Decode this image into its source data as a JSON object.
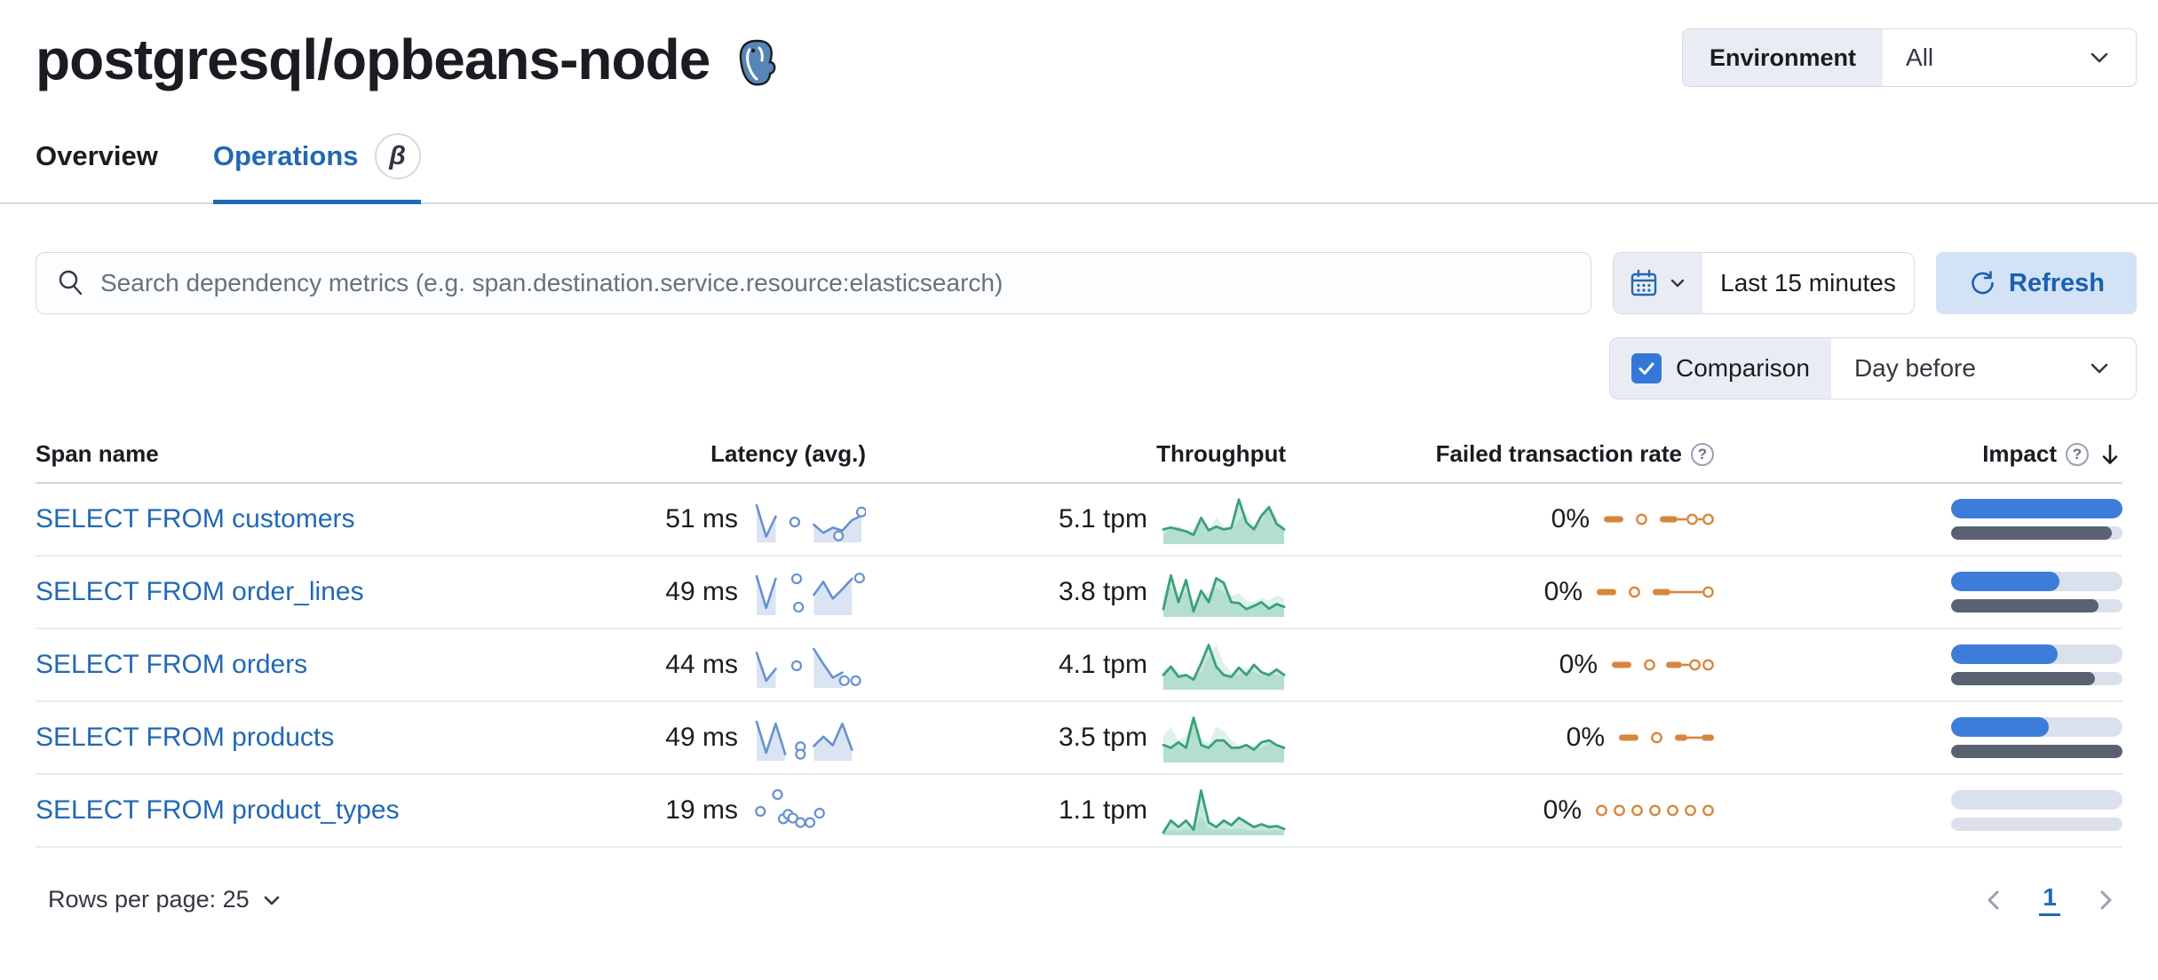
{
  "page": {
    "title": "postgresql/opbeans-node"
  },
  "environment": {
    "label": "Environment",
    "value": "All"
  },
  "tabs": {
    "overview": "Overview",
    "operations": "Operations",
    "beta": "β"
  },
  "toolbar": {
    "search_placeholder": "Search dependency metrics (e.g. span.destination.service.resource:elasticsearch)",
    "time_range": "Last 15 minutes",
    "refresh_label": "Refresh",
    "comparison_label": "Comparison",
    "comparison_checked": true,
    "comparison_value": "Day before"
  },
  "table": {
    "headers": {
      "span": "Span name",
      "latency": "Latency (avg.)",
      "throughput": "Throughput",
      "failed": "Failed transaction rate",
      "impact": "Impact"
    },
    "sort": {
      "column": "Impact",
      "direction": "desc"
    },
    "rows": [
      {
        "span_name": "SELECT FROM customers",
        "latency": "51 ms",
        "throughput": "5.1 tpm",
        "failed_rate": "0%",
        "impact": 1.0,
        "impact_prev": 0.94,
        "latency_spark": {
          "line": [
            0.9,
            0.06,
            0.6,
            null,
            null,
            null,
            0.38,
            0.16,
            0.3,
            0.22,
            0.5,
            0.62
          ],
          "dots": [
            [
              4,
              0.45
            ],
            [
              8.6,
              0.08
            ],
            [
              11,
              0.72
            ]
          ]
        },
        "throughput_spark": {
          "curr": [
            0.3,
            0.34,
            0.3,
            0.26,
            0.18,
            0.55,
            0.28,
            0.36,
            0.3,
            0.33,
            0.95,
            0.45,
            0.3,
            0.6,
            0.78,
            0.42,
            0.3
          ],
          "prev": [
            0.2,
            0.3,
            0.38,
            0.26,
            0.32,
            0.48,
            0.3,
            0.55,
            0.38,
            0.3,
            0.52,
            0.66,
            0.38,
            0.46,
            0.85,
            0.56,
            0.36
          ]
        },
        "failed_spark": [
          [
            "dash",
            22
          ],
          [
            "gap",
            14
          ],
          [
            "dot",
            13
          ],
          [
            "gap",
            14
          ],
          [
            "dash",
            20
          ],
          [
            "line",
            10
          ],
          [
            "dot",
            13
          ],
          [
            "line",
            5
          ],
          [
            "dot",
            13
          ]
        ]
      },
      {
        "span_name": "SELECT FROM order_lines",
        "latency": "49 ms",
        "throughput": "3.8 tpm",
        "failed_rate": "0%",
        "impact": 0.63,
        "impact_prev": 0.86,
        "latency_spark": {
          "line": [
            0.95,
            0.1,
            0.88,
            null,
            null,
            null,
            0.45,
            0.8,
            0.35,
            0.6,
            0.88,
            null
          ],
          "dots": [
            [
              4.2,
              0.88
            ],
            [
              4.4,
              0.12
            ],
            [
              10.8,
              0.9
            ]
          ]
        },
        "throughput_spark": {
          "curr": [
            0.15,
            0.88,
            0.3,
            0.78,
            0.1,
            0.55,
            0.3,
            0.82,
            0.72,
            0.3,
            0.28,
            0.15,
            0.22,
            0.3,
            0.16,
            0.26,
            0.2
          ],
          "prev": [
            0.5,
            0.62,
            0.42,
            0.52,
            0.34,
            0.44,
            0.54,
            0.62,
            0.52,
            0.44,
            0.5,
            0.34,
            0.3,
            0.4,
            0.34,
            0.44,
            0.38
          ]
        },
        "failed_spark": [
          [
            "dash",
            22
          ],
          [
            "gap",
            14
          ],
          [
            "dot",
            13
          ],
          [
            "gap",
            14
          ],
          [
            "dash",
            20
          ],
          [
            "line",
            36
          ],
          [
            "dot",
            13
          ]
        ]
      },
      {
        "span_name": "SELECT FROM orders",
        "latency": "44 ms",
        "throughput": "4.1 tpm",
        "failed_rate": "0%",
        "impact": 0.62,
        "impact_prev": 0.84,
        "latency_spark": {
          "line": [
            0.85,
            0.1,
            0.42,
            null,
            null,
            null,
            0.95,
            0.55,
            0.18,
            0.32,
            null,
            null
          ],
          "dots": [
            [
              4.2,
              0.5
            ],
            [
              9.2,
              0.1
            ],
            [
              10.4,
              0.1
            ]
          ]
        },
        "throughput_spark": {
          "curr": [
            0.3,
            0.48,
            0.26,
            0.3,
            0.2,
            0.55,
            0.95,
            0.48,
            0.3,
            0.26,
            0.46,
            0.3,
            0.52,
            0.36,
            0.3,
            0.42,
            0.3
          ],
          "prev": [
            0.4,
            0.52,
            0.36,
            0.3,
            0.26,
            0.36,
            0.72,
            0.95,
            0.56,
            0.36,
            0.3,
            0.46,
            0.36,
            0.3,
            0.36,
            0.3,
            0.26
          ]
        },
        "failed_spark": [
          [
            "dash",
            22
          ],
          [
            "gap",
            14
          ],
          [
            "dot",
            13
          ],
          [
            "gap",
            12
          ],
          [
            "dash",
            18
          ],
          [
            "line",
            8
          ],
          [
            "dot",
            13
          ],
          [
            "gap",
            2
          ],
          [
            "dot",
            13
          ]
        ]
      },
      {
        "span_name": "SELECT FROM products",
        "latency": "49 ms",
        "throughput": "3.5 tpm",
        "failed_rate": "0%",
        "impact": 0.57,
        "impact_prev": 1.0,
        "latency_spark": {
          "line": [
            0.95,
            0.12,
            0.9,
            0.08,
            null,
            null,
            0.3,
            0.55,
            0.32,
            0.9,
            0.2,
            null
          ],
          "dots": [
            [
              4.6,
              0.28
            ],
            [
              4.6,
              0.08
            ]
          ]
        },
        "throughput_spark": {
          "curr": [
            0.36,
            0.3,
            0.42,
            0.3,
            0.95,
            0.36,
            0.3,
            0.46,
            0.46,
            0.3,
            0.3,
            0.36,
            0.26,
            0.42,
            0.46,
            0.36,
            0.3
          ],
          "prev": [
            0.55,
            0.75,
            0.46,
            0.56,
            0.9,
            0.5,
            0.4,
            0.76,
            0.66,
            0.46,
            0.36,
            0.3,
            0.36,
            0.3,
            0.4,
            0.36,
            0.3
          ]
        },
        "failed_spark": [
          [
            "dash",
            22
          ],
          [
            "gap",
            14
          ],
          [
            "dot",
            13
          ],
          [
            "gap",
            14
          ],
          [
            "dash",
            14
          ],
          [
            "line",
            16
          ],
          [
            "dash",
            14
          ]
        ]
      },
      {
        "span_name": "SELECT FROM product_types",
        "latency": "19 ms",
        "throughput": "1.1 tpm",
        "failed_rate": "0%",
        "impact": 0.0,
        "impact_prev": 0.0,
        "latency_spark": {
          "line": [
            null,
            null,
            null,
            null,
            null,
            null,
            null,
            null,
            null,
            null,
            null,
            null
          ],
          "dots": [
            [
              0.4,
              0.5
            ],
            [
              2.2,
              0.95
            ],
            [
              2.8,
              0.3
            ],
            [
              3.3,
              0.42
            ],
            [
              3.8,
              0.32
            ],
            [
              4.6,
              0.2
            ],
            [
              5.6,
              0.2
            ],
            [
              6.6,
              0.45
            ]
          ]
        },
        "throughput_spark": {
          "curr": [
            0.04,
            0.3,
            0.16,
            0.3,
            0.1,
            0.95,
            0.26,
            0.16,
            0.3,
            0.2,
            0.36,
            0.26,
            0.16,
            0.22,
            0.16,
            0.18,
            0.12
          ],
          "prev": [
            0.06,
            0.1,
            0.08,
            0.14,
            0.1,
            0.4,
            0.14,
            0.1,
            0.12,
            0.1,
            0.14,
            0.1,
            0.08,
            0.1,
            0.08,
            0.1,
            0.08
          ]
        },
        "failed_spark": [
          [
            "dot",
            13
          ],
          [
            "gap",
            7
          ],
          [
            "dot",
            13
          ],
          [
            "gap",
            7
          ],
          [
            "dot",
            13
          ],
          [
            "gap",
            7
          ],
          [
            "dot",
            13
          ],
          [
            "gap",
            7
          ],
          [
            "dot",
            13
          ],
          [
            "gap",
            7
          ],
          [
            "dot",
            13
          ],
          [
            "gap",
            7
          ],
          [
            "dot",
            13
          ]
        ]
      }
    ]
  },
  "footer": {
    "rows_per_page": "Rows per page: 25",
    "page": "1"
  },
  "colors": {
    "link_blue": "#2268b4",
    "impact_blue": "#3d7dd9",
    "impact_prev_gray": "#5a6170",
    "bar_track": "#dbe1ec",
    "latency_line": "#6691cf",
    "latency_fill": "#dbe4f3",
    "throughput_line": "#3ba275",
    "throughput_fill": "rgba(84,179,153,0.30)",
    "throughput_prev_fill": "rgba(84,179,153,0.18)",
    "failed_orange": "#d6863e"
  }
}
